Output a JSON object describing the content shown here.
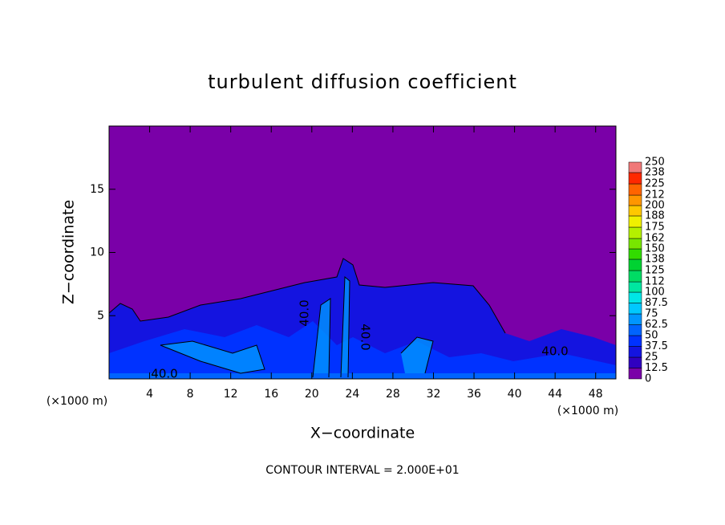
{
  "chart_data": {
    "type": "contour",
    "title": "turbulent diffusion coefficient",
    "x_label": "X−coordinate",
    "y_label": "Z−coordinate",
    "x_unit": "(×1000 m)",
    "y_unit": "(×1000 m)",
    "footer": "CONTOUR INTERVAL = 2.000E+01",
    "xlim": [
      0,
      50
    ],
    "xticks": [
      4,
      8,
      12,
      16,
      20,
      24,
      28,
      32,
      36,
      40,
      44,
      48
    ],
    "ylim": [
      0,
      20
    ],
    "yticks": [
      5,
      10,
      15
    ],
    "contour_labels": [
      "40.0",
      "40.0",
      "40.0",
      "40.0"
    ],
    "levels": [
      0,
      12.5,
      25,
      37.5,
      50,
      62.5,
      75,
      87.5,
      100,
      112,
      125,
      138,
      150,
      162,
      175,
      188,
      200,
      212,
      225,
      238,
      250
    ],
    "level_colors": [
      "#7a00a8",
      "#3000c0",
      "#1414e0",
      "#0032ff",
      "#0064ff",
      "#0096ff",
      "#00c8ff",
      "#00e6e6",
      "#00e6a0",
      "#00dc64",
      "#00d232",
      "#32dc00",
      "#78e600",
      "#b4f000",
      "#f0f000",
      "#ffc800",
      "#ff9600",
      "#ff6400",
      "#ff2800",
      "#f07878"
    ]
  }
}
